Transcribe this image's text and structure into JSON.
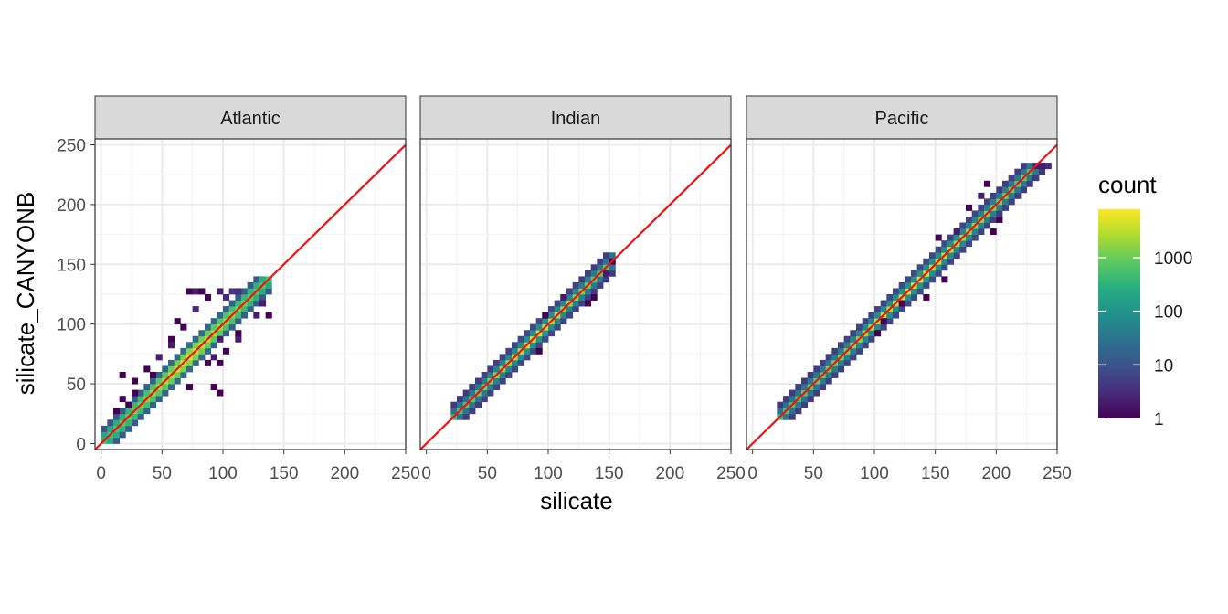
{
  "chart_data": {
    "type": "heatmap",
    "subtype": "faceted 2D histogram with 1:1 reference line",
    "xlabel": "silicate",
    "ylabel": "silicate_CANYONB",
    "xlim": [
      -5,
      250
    ],
    "ylim": [
      -5,
      255
    ],
    "x_ticks": [
      0,
      50,
      100,
      150,
      200,
      250
    ],
    "y_ticks": [
      0,
      50,
      100,
      150,
      200,
      250
    ],
    "grid": "on",
    "bin_width": 5,
    "reference_line": {
      "slope": 1,
      "intercept": 0,
      "color": "#ee1111"
    },
    "facets": [
      {
        "label": "Atlantic",
        "x_range": [
          0,
          140
        ],
        "y_range": [
          0,
          135
        ],
        "spread": 1.0,
        "scatter": [
          [
            70,
            125,
            1
          ],
          [
            75,
            125,
            2
          ],
          [
            80,
            125,
            1
          ],
          [
            85,
            120,
            1
          ],
          [
            95,
            125,
            2
          ],
          [
            100,
            120,
            3
          ],
          [
            105,
            125,
            4
          ],
          [
            110,
            125,
            3
          ],
          [
            135,
            105,
            1
          ],
          [
            125,
            105,
            2
          ],
          [
            130,
            115,
            2
          ],
          [
            60,
            100,
            1
          ],
          [
            65,
            95,
            1
          ],
          [
            55,
            85,
            1
          ],
          [
            95,
            85,
            2
          ],
          [
            100,
            75,
            1
          ],
          [
            110,
            85,
            2
          ],
          [
            110,
            90,
            1
          ],
          [
            90,
            70,
            2
          ],
          [
            85,
            65,
            1
          ],
          [
            95,
            65,
            1
          ],
          [
            15,
            55,
            1
          ],
          [
            25,
            50,
            1
          ],
          [
            35,
            60,
            1
          ],
          [
            40,
            55,
            1
          ],
          [
            70,
            45,
            1
          ],
          [
            90,
            45,
            1
          ],
          [
            95,
            40,
            1
          ],
          [
            15,
            35,
            1
          ],
          [
            20,
            30,
            1
          ],
          [
            10,
            25,
            1
          ],
          [
            25,
            40,
            1
          ],
          [
            55,
            80,
            2
          ],
          [
            45,
            70,
            2
          ],
          [
            75,
            110,
            3
          ]
        ]
      },
      {
        "label": "Indian",
        "x_range": [
          20,
          155
        ],
        "y_range": [
          20,
          155
        ],
        "spread": 0.55,
        "scatter": [
          [
            135,
            120,
            1
          ],
          [
            130,
            115,
            1
          ],
          [
            145,
            140,
            2
          ],
          [
            150,
            150,
            1
          ],
          [
            110,
            120,
            2
          ],
          [
            95,
            105,
            1
          ],
          [
            90,
            75,
            1
          ]
        ]
      },
      {
        "label": "Pacific",
        "x_range": [
          20,
          245
        ],
        "y_range": [
          20,
          230
        ],
        "spread": 0.55,
        "scatter": [
          [
            185,
            205,
            2
          ],
          [
            190,
            215,
            1
          ],
          [
            175,
            195,
            1
          ],
          [
            195,
            175,
            1
          ],
          [
            200,
            185,
            1
          ],
          [
            165,
            175,
            2
          ],
          [
            150,
            170,
            1
          ],
          [
            155,
            135,
            1
          ],
          [
            140,
            120,
            1
          ],
          [
            120,
            115,
            1
          ],
          [
            105,
            100,
            1
          ],
          [
            100,
            90,
            1
          ],
          [
            230,
            230,
            2
          ],
          [
            235,
            230,
            2
          ],
          [
            240,
            230,
            3
          ]
        ]
      }
    ],
    "legend": {
      "title": "count",
      "position": "right",
      "scale": "log10",
      "range": [
        1,
        8000
      ],
      "ticks": [
        1,
        10,
        100,
        1000
      ],
      "tick_labels": [
        "1",
        "10",
        "100",
        "1000"
      ]
    }
  }
}
